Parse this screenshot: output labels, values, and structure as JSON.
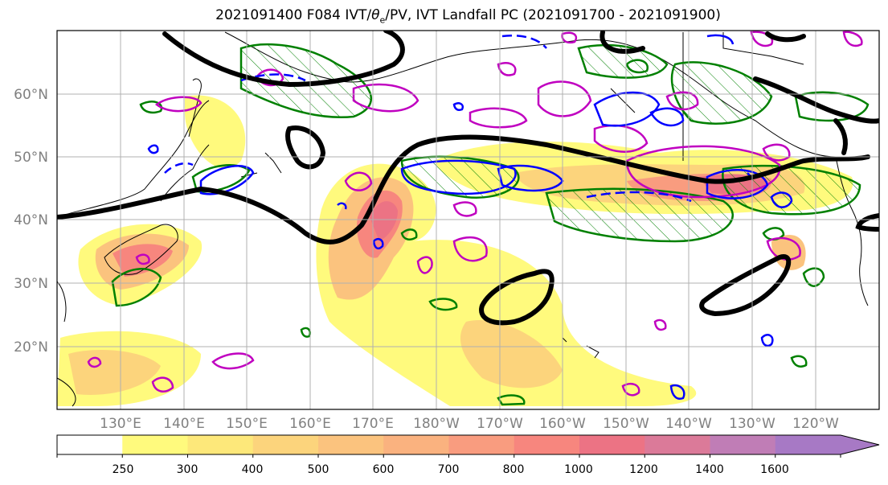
{
  "title": {
    "prefix": "2021091400 F084 IVT/",
    "theta": "θ",
    "theta_sub": "e",
    "suffix": "/PV, IVT Landfall PC (2021091700 - 2021091900)"
  },
  "axes": {
    "lat_labels": [
      "60°N",
      "50°N",
      "40°N",
      "30°N",
      "20°N"
    ],
    "lon_labels": [
      "130°E",
      "140°E",
      "150°E",
      "160°E",
      "170°E",
      "180°W",
      "170°W",
      "160°W",
      "150°W",
      "140°W",
      "130°W",
      "120°W"
    ],
    "grid": true
  },
  "colorbar": {
    "levels": [
      "250",
      "300",
      "400",
      "500",
      "600",
      "700",
      "800",
      "1000",
      "1200",
      "1400",
      "1600"
    ],
    "colors": [
      "#ffffff",
      "#fffa7d",
      "#fde87a",
      "#fcd47c",
      "#fbc37e",
      "#fab27f",
      "#f99c7f",
      "#f7867e",
      "#ec7384",
      "#db7a99",
      "#c07db6",
      "#a779c5"
    ]
  },
  "contour_colors": {
    "pv": "#000000",
    "theta_e": "#0000ff",
    "anomaly_magenta": "#c000c0",
    "pc_green": "#008000"
  }
}
